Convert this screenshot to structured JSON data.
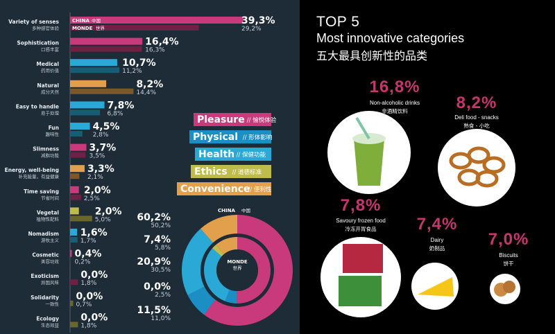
{
  "colors": {
    "panel": "#1e2c37",
    "pleasure": "#c93a7c",
    "physical": "#1b8fc4",
    "health": "#2aa9d6",
    "ethics": "#c0bc4c",
    "convenience": "#e29f4c",
    "highlight": "#c3376d"
  },
  "chart_data": [
    {
      "type": "bar",
      "series": [
        {
          "name": "CHINA 中国",
          "values": [
            39.3,
            16.4,
            10.7,
            8.2,
            7.8,
            4.5,
            3.7,
            3.3,
            2.0,
            2.0,
            1.6,
            0.4,
            0.0,
            0.0,
            0.0
          ]
        },
        {
          "name": "MONDE 世界",
          "values": [
            29.2,
            16.3,
            11.2,
            14.4,
            6.8,
            2.8,
            3.5,
            2.1,
            2.5,
            5.0,
            1.7,
            0.2,
            1.8,
            0.7,
            1.8
          ]
        }
      ],
      "categories": [
        {
          "en": "Variety of senses",
          "zh": "多种感官体验",
          "group": "pleasure",
          "china_label": "39,3%",
          "monde_label": "29,2%"
        },
        {
          "en": "Sophistication",
          "zh": "口感丰富",
          "group": "pleasure",
          "china_label": "16,4%",
          "monde_label": "16,3%"
        },
        {
          "en": "Medical",
          "zh": "药用价值",
          "group": "health",
          "china_label": "10,7%",
          "monde_label": "11,2%"
        },
        {
          "en": "Natural",
          "zh": "成分天然",
          "group": "convenience",
          "china_label": "8,2%",
          "monde_label": "14,4%"
        },
        {
          "en": "Easy to handle",
          "zh": "易于处理",
          "group": "health",
          "china_label": "7,8%",
          "monde_label": "6,8%"
        },
        {
          "en": "Fun",
          "zh": "趣味性",
          "group": "health",
          "china_label": "4,5%",
          "monde_label": "2,8%"
        },
        {
          "en": "Slimness",
          "zh": "减脂功能",
          "group": "pleasure",
          "china_label": "3,7%",
          "monde_label": "3,5%"
        },
        {
          "en": "Energy, well-being",
          "zh": "补充能量，有益健康",
          "group": "convenience",
          "china_label": "3,3%",
          "monde_label": "2,1%"
        },
        {
          "en": "Time saving",
          "zh": "节省时间",
          "group": "pleasure",
          "china_label": "2,0%",
          "monde_label": "2,5%"
        },
        {
          "en": "Vegetal",
          "zh": "植物性配料",
          "group": "ethics",
          "china_label": "2,0%",
          "monde_label": "5,0%"
        },
        {
          "en": "Nomadism",
          "zh": "游牧主义",
          "group": "health",
          "china_label": "1,6%",
          "monde_label": "1,7%"
        },
        {
          "en": "Cosmetic",
          "zh": "美容功效",
          "group": "pleasure",
          "china_label": "0,4%",
          "monde_label": "0,2%"
        },
        {
          "en": "Exoticism",
          "zh": "异国风味",
          "group": "pleasure",
          "china_label": "0,0%",
          "monde_label": "1,8%"
        },
        {
          "en": "Solidarity",
          "zh": "一致性",
          "group": "ethics",
          "china_label": "0,0%",
          "monde_label": "0,7%"
        },
        {
          "en": "Ecology",
          "zh": "生态效益",
          "group": "ethics",
          "china_label": "0,0%",
          "monde_label": "1,8%"
        }
      ],
      "series_tags": {
        "china_en": "CHINA",
        "china_zh": "中国",
        "monde_en": "MONDE",
        "monde_zh": "世界"
      },
      "legend": [
        {
          "key": "pleasure",
          "en": "Pleasure",
          "zh": "愉悦体验"
        },
        {
          "key": "physical",
          "en": "Physical",
          "zh": "形体影响"
        },
        {
          "key": "health",
          "en": "Health",
          "zh": "保健功能"
        },
        {
          "key": "ethics",
          "en": "Ethics",
          "zh": "道德标准"
        },
        {
          "key": "convenience",
          "en": "Convenience",
          "zh": "便利性"
        }
      ],
      "legend_position": "right"
    },
    {
      "type": "pie",
      "inner_label": {
        "en": "MONDE",
        "zh": "世界"
      },
      "outer_label": {
        "en": "CHINA",
        "zh": "中国"
      },
      "categories": [
        "Pleasure",
        "Physical",
        "Health",
        "Ethics",
        "Convenience"
      ],
      "series": [
        {
          "name": "CHINA 中国",
          "values": [
            60.2,
            7.4,
            20.9,
            0.0,
            11.5
          ]
        },
        {
          "name": "MONDE 世界",
          "values": [
            50.2,
            5.8,
            30.5,
            2.5,
            11.0
          ]
        }
      ],
      "value_labels": [
        {
          "china": "60,2%",
          "monde": "50,2%"
        },
        {
          "china": "7,4%",
          "monde": "5,8%"
        },
        {
          "china": "20,9%",
          "monde": "30,5%"
        },
        {
          "china": "0,0%",
          "monde": "2,5%"
        },
        {
          "china": "11,5%",
          "monde": "11,0%"
        }
      ]
    }
  ],
  "top5": {
    "title": "TOP 5",
    "subtitle": "Most innovative categories",
    "subtitle_zh": "五大最具创新性的品类",
    "items": [
      {
        "pct": "16,8%",
        "en": "Non-alcoholic drinks",
        "zh": "非酒精饮料",
        "icon": "smoothie-cup-icon"
      },
      {
        "pct": "8,2%",
        "en": "Deli food - snacks",
        "zh": "熟食 - 小吃",
        "icon": "pretzel-icon"
      },
      {
        "pct": "7,8%",
        "en": "Savoury frozen food",
        "zh": "冷冻开胃食品",
        "icon": "frozen-food-icon"
      },
      {
        "pct": "7,4%",
        "en": "Dairy",
        "zh": "奶制品",
        "icon": "cheese-icon"
      },
      {
        "pct": "7,0%",
        "en": "Biscuits",
        "zh": "饼干",
        "icon": "cookies-icon"
      }
    ]
  }
}
